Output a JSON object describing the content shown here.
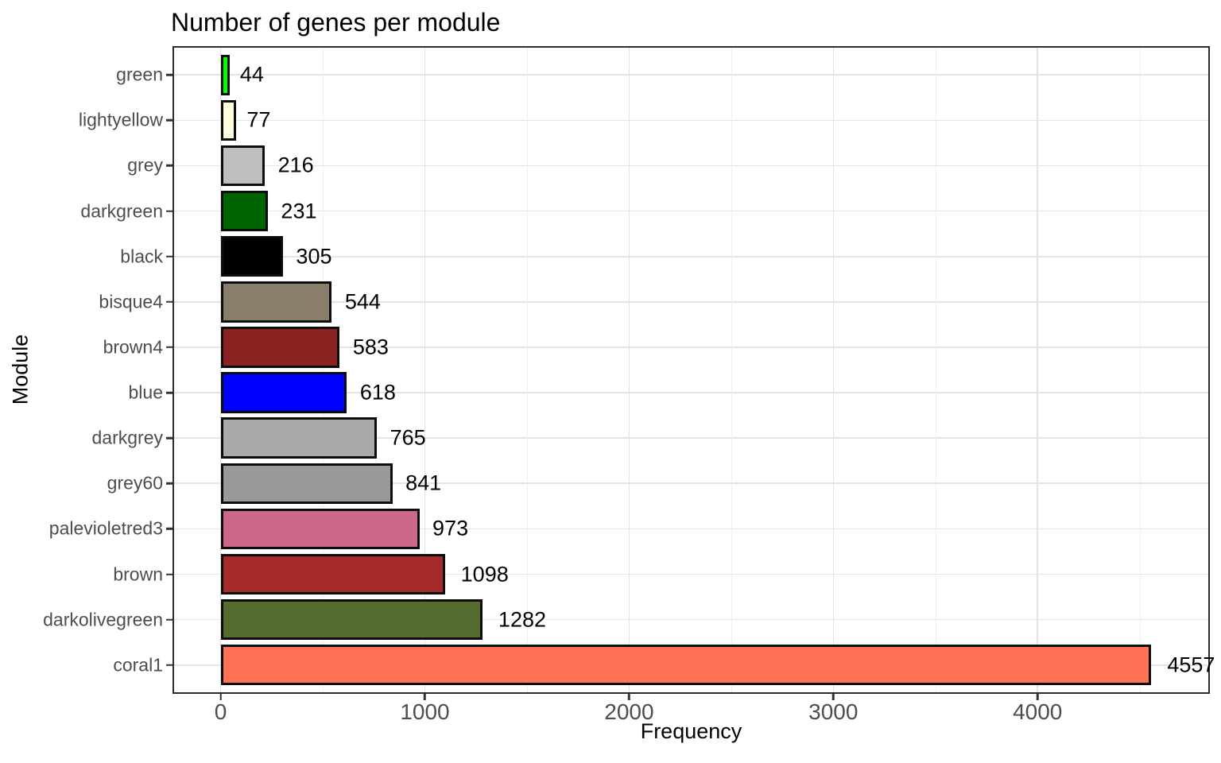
{
  "chart_data": {
    "type": "bar",
    "orientation": "horizontal",
    "title": "Number of genes per module",
    "xlabel": "Frequency",
    "ylabel": "Module",
    "grid": true,
    "legend": "none",
    "axis": {
      "domain": [
        -228,
        4836
      ],
      "major_ticks": [
        0,
        1000,
        2000,
        3000,
        4000
      ],
      "major_tick_labels": [
        "0",
        "1000",
        "2000",
        "3000",
        "4000"
      ],
      "minor_ticks": [
        500,
        1500,
        2500,
        3500,
        4500
      ]
    },
    "categories": [
      "green",
      "lightyellow",
      "grey",
      "darkgreen",
      "black",
      "bisque4",
      "brown4",
      "blue",
      "darkgrey",
      "grey60",
      "palevioletred3",
      "brown",
      "darkolivegreen",
      "coral1"
    ],
    "bars": [
      {
        "module": "green",
        "value": 44,
        "label": "44",
        "color": "#00FF00"
      },
      {
        "module": "lightyellow",
        "value": 77,
        "label": "77",
        "color": "#FFFFE0"
      },
      {
        "module": "grey",
        "value": 216,
        "label": "216",
        "color": "#BEBEBE"
      },
      {
        "module": "darkgreen",
        "value": 231,
        "label": "231",
        "color": "#006400"
      },
      {
        "module": "black",
        "value": 305,
        "label": "305",
        "color": "#000000"
      },
      {
        "module": "bisque4",
        "value": 544,
        "label": "544",
        "color": "#8B7D6B"
      },
      {
        "module": "brown4",
        "value": 583,
        "label": "583",
        "color": "#8B2323"
      },
      {
        "module": "blue",
        "value": 618,
        "label": "618",
        "color": "#0000FF"
      },
      {
        "module": "darkgrey",
        "value": 765,
        "label": "765",
        "color": "#A9A9A9"
      },
      {
        "module": "grey60",
        "value": 841,
        "label": "841",
        "color": "#999999"
      },
      {
        "module": "palevioletred3",
        "value": 973,
        "label": "973",
        "color": "#CD6889"
      },
      {
        "module": "brown",
        "value": 1098,
        "label": "1098",
        "color": "#A52A2A"
      },
      {
        "module": "darkolivegreen",
        "value": 1282,
        "label": "1282",
        "color": "#556B2F"
      },
      {
        "module": "coral1",
        "value": 4557,
        "label": "4557",
        "color": "#FF7256",
        "label_clipped_at_panel_edge": true
      }
    ],
    "style": {
      "bar_border_color": "#0d0d0d",
      "panel_border_color": "#2d2d2d",
      "major_grid_color": "#e2e2e2",
      "minor_grid_color": "#efefef",
      "tick_text_color": "#4d4d4d",
      "value_label_color": "#000000"
    }
  }
}
